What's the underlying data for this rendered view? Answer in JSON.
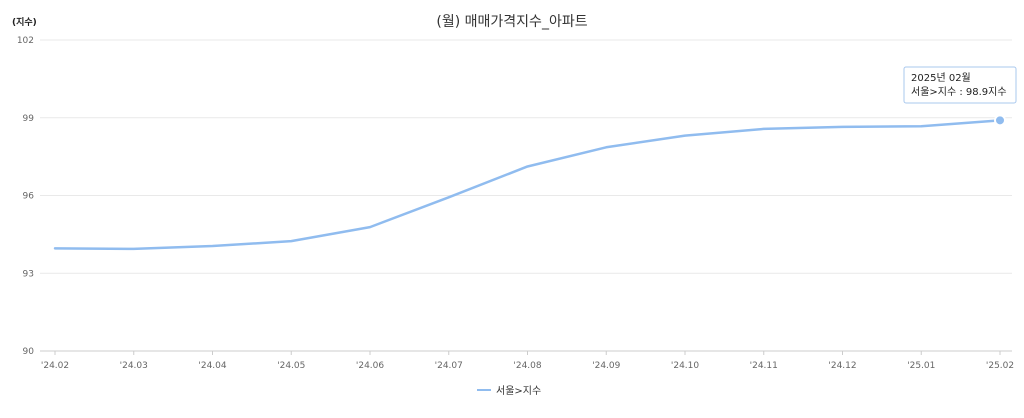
{
  "chart_data": {
    "type": "line",
    "title": "(월) 매매가격지수_아파트",
    "y_unit": "(지수)",
    "categories": [
      "'24.02",
      "'24.03",
      "'24.04",
      "'24.05",
      "'24.06",
      "'24.07",
      "'24.08",
      "'24.09",
      "'24.10",
      "'24.11",
      "'24.12",
      "'25.01",
      "'25.02"
    ],
    "series": [
      {
        "name": "서울>지수",
        "color": "#90bcef",
        "values": [
          93.96,
          93.94,
          94.05,
          94.24,
          94.78,
          95.93,
          97.12,
          97.86,
          98.31,
          98.57,
          98.65,
          98.67,
          98.9
        ]
      }
    ],
    "yticks": [
      90,
      93,
      96,
      99,
      102
    ],
    "ylim": [
      90,
      102
    ],
    "grid": "horizontal",
    "legend_position": "bottom-center",
    "tooltip": {
      "line1": "2025년 02월",
      "line2": "서울>지수 : 98.9지수",
      "category": "'25.02"
    }
  }
}
